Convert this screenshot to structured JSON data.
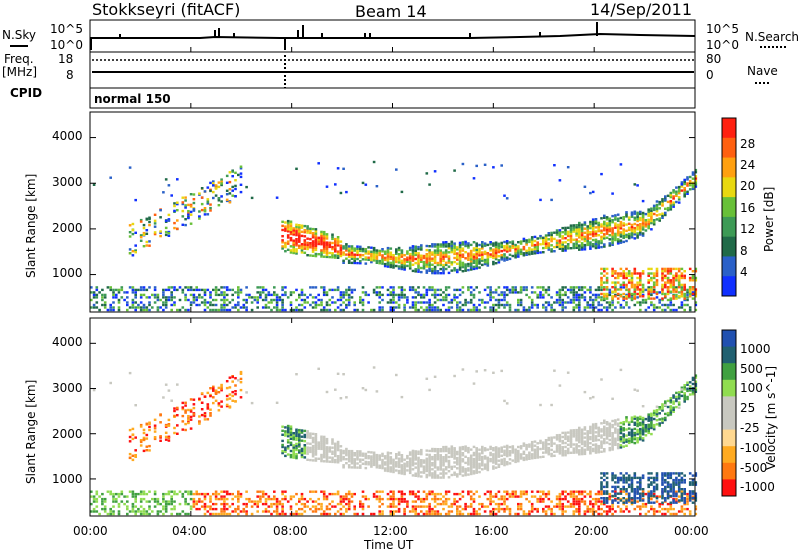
{
  "header": {
    "station": "Stokkseyri (fitACF)",
    "beam": "Beam 14",
    "date": "14/Sep/2011"
  },
  "side_labels": {
    "nsky": "N.Sky",
    "freq": "Freq.",
    "mhz": "[MHz]",
    "cpid": "CPID",
    "nsearch": "N.Search",
    "nave": "Nave",
    "cpid_value": "normal 150"
  },
  "top_ticks": {
    "left_top": "10^5",
    "left_bottom": "10^0",
    "right_top": "10^5",
    "right_bottom": "10^0",
    "freq_top": "18",
    "freq_bottom": "8",
    "nave_top": "80",
    "nave_bottom": "0"
  },
  "colors": {
    "power_scale": [
      "#1030ff",
      "#2a60c8",
      "#206a48",
      "#3d9a55",
      "#68c038",
      "#e8d810",
      "#ffa010",
      "#ff6010",
      "#ff2010"
    ],
    "velocity_scale": [
      "#ff1010",
      "#ff7810",
      "#ffaa20",
      "#ffd890",
      "#c8c8c0",
      "#c8c8c0",
      "#90dc50",
      "#40a040",
      "#206070",
      "#2050b0"
    ],
    "gray": "#c8c8c0"
  },
  "chart_data": [
    {
      "type": "heatmap",
      "title": "Power",
      "xlabel": "Time UT",
      "ylabel": "Slant Range [km]",
      "x_ticks": [
        "00:00",
        "04:00",
        "08:00",
        "12:00",
        "16:00",
        "20:00",
        "00:00"
      ],
      "y_ticks": [
        "1000",
        "2000",
        "3000",
        "4000"
      ],
      "ylim": [
        180,
        4560
      ],
      "colorbar": {
        "label": "Power [dB]",
        "ticks": [
          "4",
          "8",
          "12",
          "16",
          "20",
          "24",
          "28"
        ],
        "range": [
          0,
          32
        ]
      }
    },
    {
      "type": "heatmap",
      "title": "Velocity",
      "xlabel": "Time UT",
      "ylabel": "Slant Range [km]",
      "x_ticks": [
        "00:00",
        "04:00",
        "08:00",
        "12:00",
        "16:00",
        "20:00",
        "00:00"
      ],
      "y_ticks": [
        "1000",
        "2000",
        "3000",
        "4000"
      ],
      "ylim": [
        180,
        4560
      ],
      "colorbar": {
        "label": "Velocity [m s^-1]",
        "ticks": [
          "1000",
          "500",
          "100",
          "25",
          "-25",
          "-100",
          "-500",
          "-1000"
        ]
      }
    }
  ]
}
